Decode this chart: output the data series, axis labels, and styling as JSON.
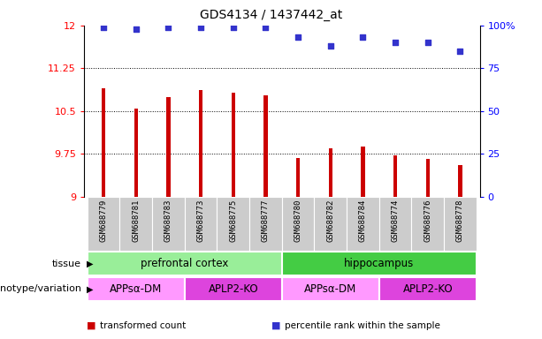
{
  "title": "GDS4134 / 1437442_at",
  "samples": [
    "GSM688779",
    "GSM688781",
    "GSM688783",
    "GSM688773",
    "GSM688775",
    "GSM688777",
    "GSM688780",
    "GSM688782",
    "GSM688784",
    "GSM688774",
    "GSM688776",
    "GSM688778"
  ],
  "bar_values": [
    10.9,
    10.55,
    10.75,
    10.87,
    10.82,
    10.77,
    9.68,
    9.85,
    9.87,
    9.72,
    9.66,
    9.55
  ],
  "dot_values": [
    99,
    98,
    99,
    99,
    99,
    99,
    93,
    88,
    93,
    90,
    90,
    85
  ],
  "bar_color": "#cc0000",
  "dot_color": "#3333cc",
  "ylim_left": [
    9,
    12
  ],
  "ylim_right": [
    0,
    100
  ],
  "yticks_left": [
    9,
    9.75,
    10.5,
    11.25,
    12
  ],
  "yticks_right": [
    0,
    25,
    50,
    75,
    100
  ],
  "ytick_labels_left": [
    "9",
    "9.75",
    "10.5",
    "11.25",
    "12"
  ],
  "ytick_labels_right": [
    "0",
    "25",
    "50",
    "75",
    "100%"
  ],
  "tissue_labels": [
    {
      "text": "prefrontal cortex",
      "start": 0,
      "end": 5,
      "color": "#99ee99"
    },
    {
      "text": "hippocampus",
      "start": 6,
      "end": 11,
      "color": "#44cc44"
    }
  ],
  "genotype_labels": [
    {
      "text": "APPsα-DM",
      "start": 0,
      "end": 2,
      "color": "#ff99ff"
    },
    {
      "text": "APLP2-KO",
      "start": 3,
      "end": 5,
      "color": "#dd44dd"
    },
    {
      "text": "APPsα-DM",
      "start": 6,
      "end": 8,
      "color": "#ff99ff"
    },
    {
      "text": "APLP2-KO",
      "start": 9,
      "end": 11,
      "color": "#dd44dd"
    }
  ],
  "legend_items": [
    {
      "color": "#cc0000",
      "label": "transformed count"
    },
    {
      "color": "#3333cc",
      "label": "percentile rank within the sample"
    }
  ],
  "row_labels": [
    "tissue",
    "genotype/variation"
  ],
  "sample_bg_color": "#cccccc",
  "background_color": "#ffffff",
  "bar_width": 0.12
}
